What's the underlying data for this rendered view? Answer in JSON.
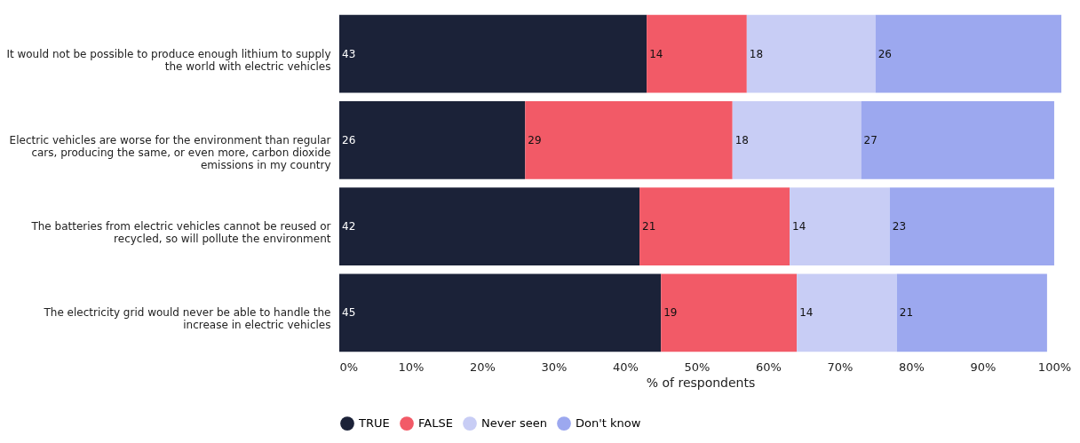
{
  "chart_data": {
    "type": "bar",
    "orientation": "horizontal",
    "stacked": true,
    "data_labels": true,
    "xlabel": "% of respondents",
    "legend": "bottom",
    "grid": false,
    "categories": [
      "It would not be possible to produce enough lithium to supply the world with electric vehicles",
      "Electric vehicles are worse for the environment than regular cars, producing the same, or even more, carbon dioxide emissions in my country",
      "The batteries from electric vehicles cannot be reused or recycled, so will pollute the environment",
      "The electricity grid would never be able to handle the increase in electric vehicles"
    ],
    "series": [
      {
        "name": "TRUE",
        "color": "#1b2238",
        "values": [
          43,
          26,
          42,
          45
        ]
      },
      {
        "name": "FALSE",
        "color": "#f25a67",
        "values": [
          14,
          29,
          21,
          19
        ]
      },
      {
        "name": "Never seen",
        "color": "#c8cdf5",
        "values": [
          18,
          18,
          14,
          14
        ]
      },
      {
        "name": "Don't know",
        "color": "#9ca8ef",
        "values": [
          26,
          27,
          23,
          21
        ]
      }
    ],
    "xlim": [
      0,
      101
    ],
    "xticks": [
      {
        "value": 0,
        "label": "0%"
      },
      {
        "value": 10,
        "label": "10%"
      },
      {
        "value": 20,
        "label": "20%"
      },
      {
        "value": 30,
        "label": "30%"
      },
      {
        "value": 40,
        "label": "40%"
      },
      {
        "value": 50,
        "label": "50%"
      },
      {
        "value": 60,
        "label": "60%"
      },
      {
        "value": 70,
        "label": "70%"
      },
      {
        "value": 80,
        "label": "80%"
      },
      {
        "value": 90,
        "label": "90%"
      },
      {
        "value": 100,
        "label": "100%"
      }
    ]
  }
}
